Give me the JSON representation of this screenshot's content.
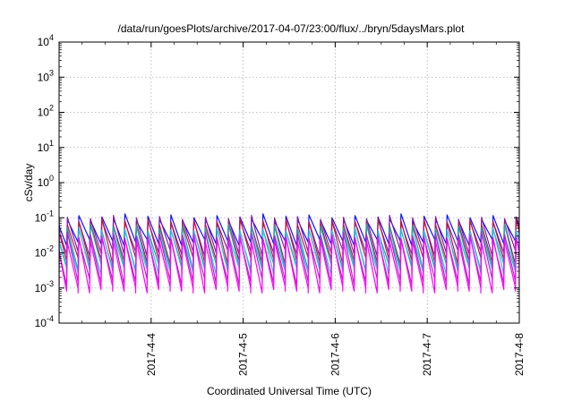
{
  "chart_data": {
    "type": "line",
    "title": "/data/run/goesPlots/archive/2017-04-07/23:00/flux/../bryn/5daysMars.plot",
    "xlabel": "Coordinated Universal Time (UTC)",
    "ylabel": "cSv/day",
    "y_scale": "log",
    "ylim": [
      0.0001,
      10000
    ],
    "xlim": [
      "2017-04-03T00:00",
      "2017-04-08T00:00"
    ],
    "y_ticks": [
      {
        "value": 0.0001,
        "mantissa": "10",
        "exp": "-4"
      },
      {
        "value": 0.001,
        "mantissa": "10",
        "exp": "-3"
      },
      {
        "value": 0.01,
        "mantissa": "10",
        "exp": "-2"
      },
      {
        "value": 0.1,
        "mantissa": "10",
        "exp": "-1"
      },
      {
        "value": 1,
        "mantissa": "10",
        "exp": "0"
      },
      {
        "value": 10,
        "mantissa": "10",
        "exp": "1"
      },
      {
        "value": 100,
        "mantissa": "10",
        "exp": "2"
      },
      {
        "value": 1000,
        "mantissa": "10",
        "exp": "3"
      },
      {
        "value": 10000,
        "mantissa": "10",
        "exp": "4"
      }
    ],
    "x_ticks": [
      {
        "value": "2017-04-04T00:00",
        "label": "2017-4-4"
      },
      {
        "value": "2017-04-05T00:00",
        "label": "2017-4-5"
      },
      {
        "value": "2017-04-06T00:00",
        "label": "2017-4-6"
      },
      {
        "value": "2017-04-07T00:00",
        "label": "2017-4-7"
      },
      {
        "value": "2017-04-08T00:00",
        "label": "2017-4-8"
      }
    ],
    "grid": true,
    "legend": "none",
    "sawtooth_period_hours": 3,
    "series": [
      {
        "color": "#1010ff",
        "peak": 0.1,
        "trough": 0.02
      },
      {
        "color": "#8020a0",
        "peak": 0.09,
        "trough": 0.01
      },
      {
        "color": "#d01040",
        "peak": 0.075,
        "trough": 0.006
      },
      {
        "color": "#10b0b0",
        "peak": 0.05,
        "trough": 0.004
      },
      {
        "color": "#20c8e0",
        "peak": 0.04,
        "trough": 0.003
      },
      {
        "color": "#c020c0",
        "peak": 0.03,
        "trough": 0.0015
      },
      {
        "color": "#ff00ff",
        "peak": 0.025,
        "trough": 0.0009
      }
    ]
  }
}
